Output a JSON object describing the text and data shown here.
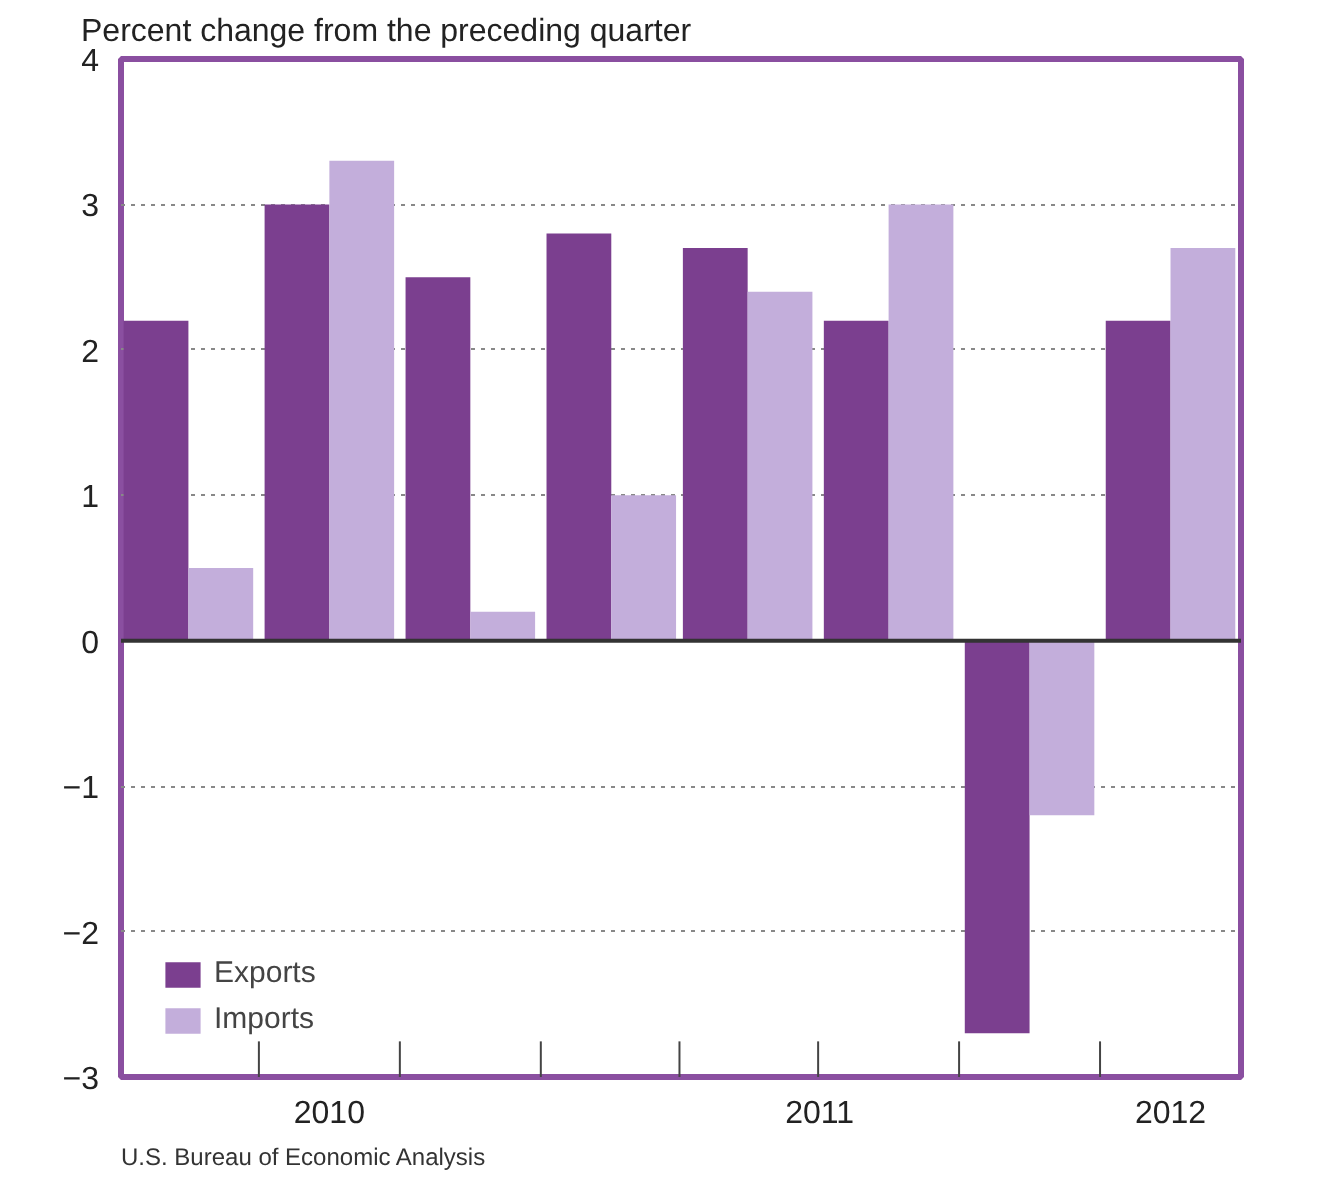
{
  "chart_data": {
    "type": "bar",
    "ylabel": "Percent change from the preceding quarter",
    "x": [
      "2010-05-15",
      "2010-08-15",
      "2010-11-15",
      "2011-02-15",
      "2011-05-15",
      "2011-08-15",
      "2011-11-15",
      "2012-02-15"
    ],
    "xlim": [
      "2010-04-01",
      "2012-04-01"
    ],
    "xticks": [
      {
        "value": "2010-08-15",
        "label": "2010"
      },
      {
        "value": "2011-07-01",
        "label": "2011"
      },
      {
        "value": "2012-02-15",
        "label": "2012"
      }
    ],
    "ylim": [
      -3,
      4
    ],
    "yticks": [
      {
        "value": -3,
        "label": "−3"
      },
      {
        "value": -2,
        "label": "−2"
      },
      {
        "value": -1,
        "label": "−1"
      },
      0,
      1,
      2,
      3,
      4
    ],
    "series": [
      {
        "name": "Exports",
        "color": "#7b3f8f",
        "values": [
          2.2,
          3.0,
          2.5,
          2.8,
          2.7,
          2.2,
          -2.7,
          2.2
        ]
      },
      {
        "name": "Imports",
        "color": "#c3aedb",
        "values": [
          0.5,
          3.3,
          0.2,
          1.0,
          2.4,
          3.0,
          -1.2,
          2.7
        ]
      }
    ],
    "ref_lines": [
      {
        "axis": "y",
        "value": 0,
        "color": "#333333"
      }
    ],
    "grid": "y",
    "legend": "bottom left",
    "annotations": [
      "U.S. Bureau of Economic Analysis"
    ]
  }
}
